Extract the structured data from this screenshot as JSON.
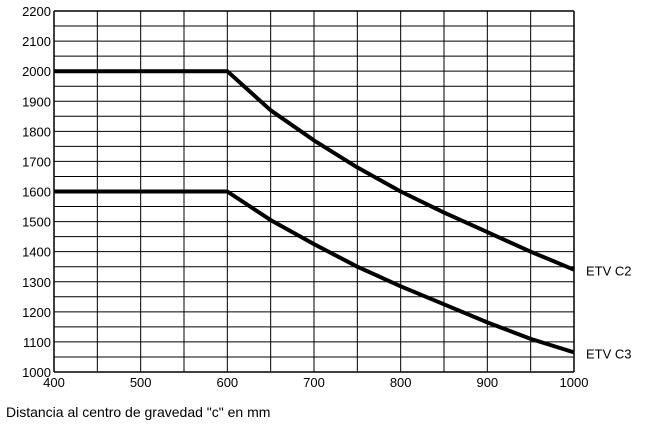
{
  "chart_data": {
    "type": "line",
    "xlabel": "Distancia al centro de gravedad \"c\" en mm",
    "ylabel": "",
    "xlim": [
      400,
      1000
    ],
    "ylim": [
      1000,
      2200
    ],
    "x_ticks": [
      "400",
      "500",
      "600",
      "700",
      "800",
      "900",
      "1000"
    ],
    "y_ticks": [
      "1000",
      "1100",
      "1200",
      "1300",
      "1400",
      "1500",
      "1600",
      "1700",
      "1800",
      "1900",
      "2000",
      "2100",
      "2200"
    ],
    "grid": true,
    "series": [
      {
        "name": "ETV C2",
        "points": [
          [
            400,
            2000
          ],
          [
            600,
            2000
          ],
          [
            650,
            1870
          ],
          [
            700,
            1770
          ],
          [
            750,
            1680
          ],
          [
            800,
            1600
          ],
          [
            850,
            1530
          ],
          [
            900,
            1465
          ],
          [
            950,
            1400
          ],
          [
            1000,
            1340
          ]
        ]
      },
      {
        "name": "ETV C3",
        "points": [
          [
            400,
            1600
          ],
          [
            600,
            1600
          ],
          [
            650,
            1505
          ],
          [
            700,
            1425
          ],
          [
            750,
            1350
          ],
          [
            800,
            1285
          ],
          [
            850,
            1225
          ],
          [
            900,
            1165
          ],
          [
            950,
            1110
          ],
          [
            1000,
            1065
          ]
        ]
      }
    ],
    "colors": {
      "line": "#000000",
      "grid": "#000000"
    }
  }
}
